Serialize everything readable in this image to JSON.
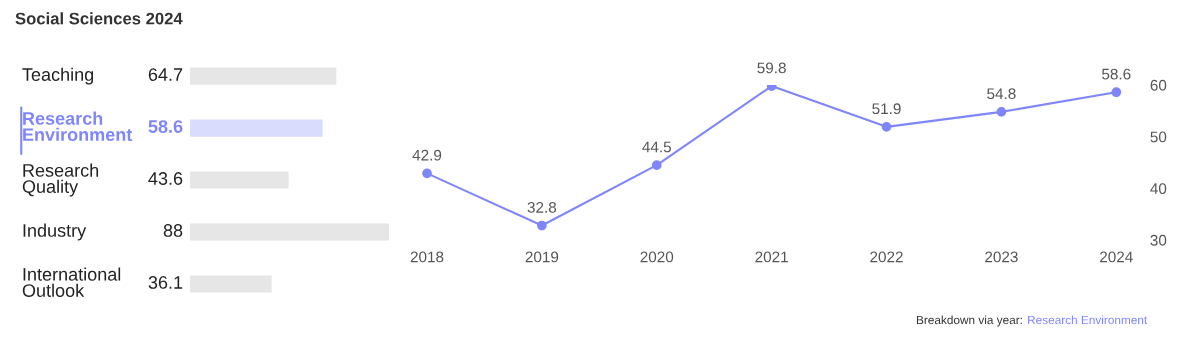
{
  "chart_data": [
    {
      "type": "bar",
      "title": "Social Sciences 2024",
      "orientation": "horizontal",
      "categories": [
        "Teaching",
        "Research\nEnvironment",
        "Research\nQuality",
        "Industry",
        "International\nOutlook"
      ],
      "values": [
        64.7,
        58.6,
        43.6,
        88,
        36.1
      ],
      "colors": [
        "#e6e6e6",
        "#d9dcfd",
        "#e6e6e6",
        "#e6e6e6",
        "#e6e6e6"
      ],
      "data_labels": true,
      "xlim": [
        0,
        88
      ],
      "tick_labels": "y"
    },
    {
      "type": "line",
      "categories": [
        "2018",
        "2019",
        "2020",
        "2021",
        "2022",
        "2023",
        "2024"
      ],
      "series": [
        {
          "color": "#7f86fb",
          "values": [
            42.9,
            32.8,
            44.5,
            59.8,
            51.9,
            54.8,
            58.6
          ]
        }
      ],
      "ylim": [
        30,
        60
      ],
      "yticks": [
        30,
        40,
        50,
        60
      ],
      "marker": "circle",
      "data_labels": true,
      "grid": false,
      "annotations": [
        "Breakdown via year:",
        "Research Environment"
      ]
    }
  ]
}
